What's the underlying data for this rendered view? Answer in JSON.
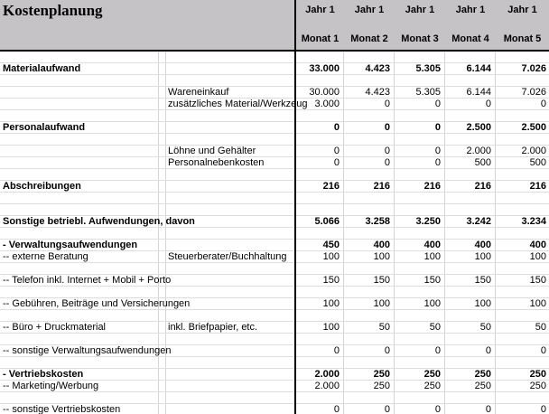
{
  "title": "Kostenplanung",
  "colors": {
    "header_bg": "#c6c3c6",
    "divider": "#000000",
    "grid_line": "#d4d4d4",
    "text": "#000000"
  },
  "columns": [
    {
      "year": "Jahr 1",
      "month": "Monat 1"
    },
    {
      "year": "Jahr 1",
      "month": "Monat 2"
    },
    {
      "year": "Jahr 1",
      "month": "Monat 3"
    },
    {
      "year": "Jahr 1",
      "month": "Monat 4"
    },
    {
      "year": "Jahr 1",
      "month": "Monat 5"
    }
  ],
  "rows": [
    {
      "type": "spacer",
      "label": "",
      "desc": "",
      "values": [
        "",
        "",
        "",
        "",
        ""
      ]
    },
    {
      "type": "section",
      "label": "Materialaufwand",
      "desc": "",
      "values": [
        "33.000",
        "4.423",
        "5.305",
        "6.144",
        "7.026"
      ]
    },
    {
      "type": "spacer",
      "label": "",
      "desc": "",
      "values": [
        "",
        "",
        "",
        "",
        ""
      ]
    },
    {
      "type": "item",
      "label": "",
      "desc": "Wareneinkauf",
      "values": [
        "30.000",
        "4.423",
        "5.305",
        "6.144",
        "7.026"
      ]
    },
    {
      "type": "item",
      "label": "",
      "desc": "zusätzliches Material/Werkzeug",
      "values": [
        "3.000",
        "0",
        "0",
        "0",
        "0"
      ]
    },
    {
      "type": "spacer",
      "label": "",
      "desc": "",
      "values": [
        "",
        "",
        "",
        "",
        ""
      ]
    },
    {
      "type": "section",
      "label": "Personalaufwand",
      "desc": "",
      "values": [
        "0",
        "0",
        "0",
        "2.500",
        "2.500"
      ]
    },
    {
      "type": "spacer",
      "label": "",
      "desc": "",
      "values": [
        "",
        "",
        "",
        "",
        ""
      ]
    },
    {
      "type": "item",
      "label": "",
      "desc": "Löhne und Gehälter",
      "values": [
        "0",
        "0",
        "0",
        "2.000",
        "2.000"
      ]
    },
    {
      "type": "item",
      "label": "",
      "desc": "Personalnebenkosten",
      "values": [
        "0",
        "0",
        "0",
        "500",
        "500"
      ]
    },
    {
      "type": "spacer",
      "label": "",
      "desc": "",
      "values": [
        "",
        "",
        "",
        "",
        ""
      ]
    },
    {
      "type": "section",
      "label": "Abschreibungen",
      "desc": "",
      "values": [
        "216",
        "216",
        "216",
        "216",
        "216"
      ]
    },
    {
      "type": "spacer",
      "label": "",
      "desc": "",
      "values": [
        "",
        "",
        "",
        "",
        ""
      ]
    },
    {
      "type": "spacer",
      "label": "",
      "desc": "",
      "values": [
        "",
        "",
        "",
        "",
        ""
      ]
    },
    {
      "type": "section",
      "label": "Sonstige betriebl. Aufwendungen, davon",
      "desc": "",
      "values": [
        "5.066",
        "3.258",
        "3.250",
        "3.242",
        "3.234"
      ]
    },
    {
      "type": "spacer",
      "label": "",
      "desc": "",
      "values": [
        "",
        "",
        "",
        "",
        ""
      ]
    },
    {
      "type": "section",
      "label": "- Verwaltungsaufwendungen",
      "desc": "",
      "values": [
        "450",
        "400",
        "400",
        "400",
        "400"
      ]
    },
    {
      "type": "item",
      "label": "-- externe Beratung",
      "desc": "Steuerberater/Buchhaltung",
      "values": [
        "100",
        "100",
        "100",
        "100",
        "100"
      ]
    },
    {
      "type": "spacer",
      "label": "",
      "desc": "",
      "values": [
        "",
        "",
        "",
        "",
        ""
      ]
    },
    {
      "type": "item",
      "label": "-- Telefon inkl. Internet + Mobil + Porto",
      "desc": "",
      "values": [
        "150",
        "150",
        "150",
        "150",
        "150"
      ]
    },
    {
      "type": "spacer",
      "label": "",
      "desc": "",
      "values": [
        "",
        "",
        "",
        "",
        ""
      ]
    },
    {
      "type": "item",
      "label": "-- Gebühren, Beiträge und Versicherungen",
      "desc": "",
      "values": [
        "100",
        "100",
        "100",
        "100",
        "100"
      ]
    },
    {
      "type": "spacer",
      "label": "",
      "desc": "",
      "values": [
        "",
        "",
        "",
        "",
        ""
      ]
    },
    {
      "type": "item",
      "label": "-- Büro + Druckmaterial",
      "desc": "inkl. Briefpapier, etc.",
      "values": [
        "100",
        "50",
        "50",
        "50",
        "50"
      ]
    },
    {
      "type": "spacer",
      "label": "",
      "desc": "",
      "values": [
        "",
        "",
        "",
        "",
        ""
      ]
    },
    {
      "type": "item",
      "label": "-- sonstige Verwaltungsaufwendungen",
      "desc": "",
      "values": [
        "0",
        "0",
        "0",
        "0",
        "0"
      ]
    },
    {
      "type": "spacer",
      "label": "",
      "desc": "",
      "values": [
        "",
        "",
        "",
        "",
        ""
      ]
    },
    {
      "type": "section",
      "label": "- Vertriebskosten",
      "desc": "",
      "values": [
        "2.000",
        "250",
        "250",
        "250",
        "250"
      ]
    },
    {
      "type": "item",
      "label": "-- Marketing/Werbung",
      "desc": "",
      "values": [
        "2.000",
        "250",
        "250",
        "250",
        "250"
      ]
    },
    {
      "type": "spacer",
      "label": "",
      "desc": "",
      "values": [
        "",
        "",
        "",
        "",
        ""
      ]
    },
    {
      "type": "item",
      "label": "-- sonstige Vertriebskosten",
      "desc": "",
      "values": [
        "0",
        "0",
        "0",
        "0",
        "0"
      ]
    }
  ]
}
